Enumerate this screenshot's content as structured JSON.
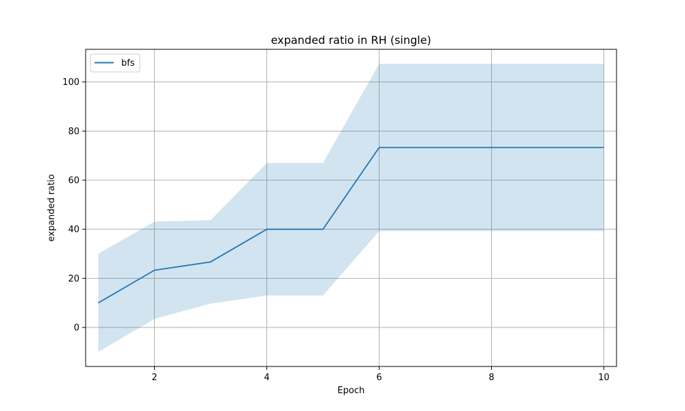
{
  "chart_data": {
    "type": "line",
    "title": "expanded ratio in RH (single)",
    "xlabel": "Epoch",
    "ylabel": "expanded ratio",
    "xlim": [
      0.775,
      10.225
    ],
    "ylim": [
      -15.9,
      113.3
    ],
    "xticks": [
      2,
      4,
      6,
      8,
      10
    ],
    "yticks": [
      0,
      20,
      40,
      60,
      80,
      100
    ],
    "grid": true,
    "legend_position": "top-left",
    "series": [
      {
        "name": "bfs",
        "color": "#1f77b4",
        "x": [
          1,
          2,
          3,
          4,
          5,
          6,
          7,
          8,
          9,
          10
        ],
        "y": [
          10,
          23.3,
          26.7,
          40,
          40,
          73.3,
          73.3,
          73.3,
          73.3,
          73.3
        ],
        "band_lower": [
          -10,
          3.5,
          9.7,
          13,
          13,
          39.2,
          39.2,
          39.2,
          39.2,
          39.2
        ],
        "band_upper": [
          30,
          43.1,
          43.7,
          67,
          67,
          107.4,
          107.4,
          107.4,
          107.4,
          107.4
        ],
        "band_color": "#1f77b4",
        "band_opacity": 0.2
      }
    ]
  }
}
